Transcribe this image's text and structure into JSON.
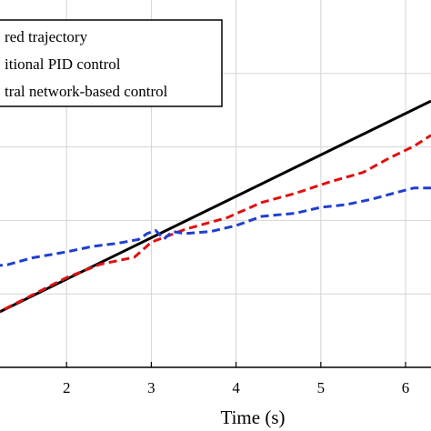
{
  "chart_data": {
    "type": "line",
    "xlabel": "Time (s)",
    "ylabel": "",
    "xlim": [
      1.0,
      6.3
    ],
    "ylim": [
      0.0,
      1.0
    ],
    "x_ticks": [
      2,
      3,
      4,
      5,
      6
    ],
    "x_tick_labels": [
      "2",
      "3",
      "4",
      "5",
      "6"
    ],
    "grid": true,
    "legend_position": "top-left",
    "series": [
      {
        "name": "red trajectory",
        "color": "#000000",
        "style": "solid",
        "x": [
          1.0,
          6.3
        ],
        "y": [
          0.1272,
          0.7251
        ]
      },
      {
        "name": "itional PID control",
        "color": "#e01010",
        "style": "dashed",
        "x": [
          1.0,
          1.5,
          2.0,
          2.4,
          2.8,
          3.0,
          3.4,
          3.9,
          4.3,
          4.7,
          5.1,
          5.5,
          5.8,
          6.1,
          6.3
        ],
        "y": [
          0.1272,
          0.1857,
          0.2442,
          0.2807,
          0.2997,
          0.3406,
          0.3758,
          0.4079,
          0.4488,
          0.4737,
          0.5044,
          0.5307,
          0.5687,
          0.6023,
          0.6316
        ]
      },
      {
        "name": "tral network-based control",
        "color": "#1f3fd0",
        "style": "dashed",
        "x": [
          1.0,
          1.3,
          1.6,
          2.0,
          2.3,
          2.6,
          2.85,
          2.95,
          3.05,
          3.15,
          3.25,
          3.4,
          3.7,
          4.0,
          4.3,
          4.7,
          5.0,
          5.3,
          5.6,
          5.9,
          6.1,
          6.3
        ],
        "y": [
          0.2734,
          0.2792,
          0.2982,
          0.3143,
          0.329,
          0.3377,
          0.348,
          0.364,
          0.3728,
          0.3494,
          0.3699,
          0.364,
          0.3699,
          0.386,
          0.4108,
          0.4196,
          0.4357,
          0.443,
          0.4576,
          0.4766,
          0.4883,
          0.4883
        ]
      }
    ]
  }
}
